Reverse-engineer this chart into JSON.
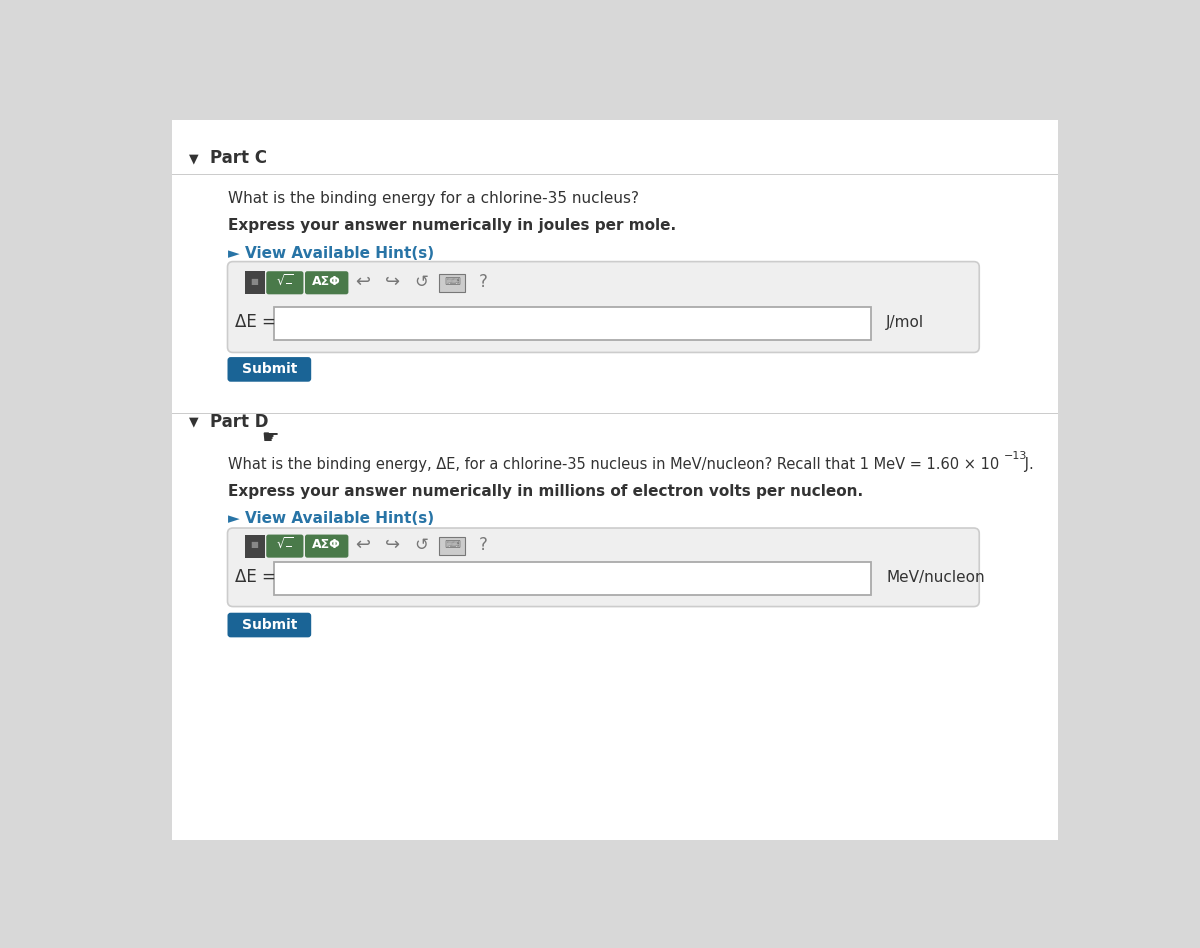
{
  "bg_color": "#d8d8d8",
  "panel_color": "#efefef",
  "white": "#ffffff",
  "dark_gray": "#333333",
  "medium_gray": "#777777",
  "light_gray": "#cccccc",
  "blue_button": "#1a6496",
  "blue_hint": "#2874a6",
  "toolbar_green": "#4a7a4a",
  "toolbar_dark": "#444444",
  "input_border": "#aaaaaa",
  "part_c_label": "Part C",
  "part_d_label": "Part D",
  "q1_line1": "What is the binding energy for a chlorine-35 nucleus?",
  "q1_line2": "Express your answer numerically in joules per mole.",
  "q1_hint": "► View Available Hint(s)",
  "q1_delta": "ΔE =",
  "q1_unit": "J/mol",
  "q2_line1a": "What is the binding energy, ΔE, for a chlorine-35 nucleus in MeV/nucleon? Recall that 1 MeV = 1.60 × 10",
  "q2_line1b": "−13",
  "q2_line1c": " J.",
  "q2_line2": "Express your answer numerically in millions of electron volts per nucleon.",
  "q2_hint": "► View Available Hint(s)",
  "q2_delta": "ΔE =",
  "q2_unit": "MeV/nucleon",
  "submit_label": "Submit"
}
